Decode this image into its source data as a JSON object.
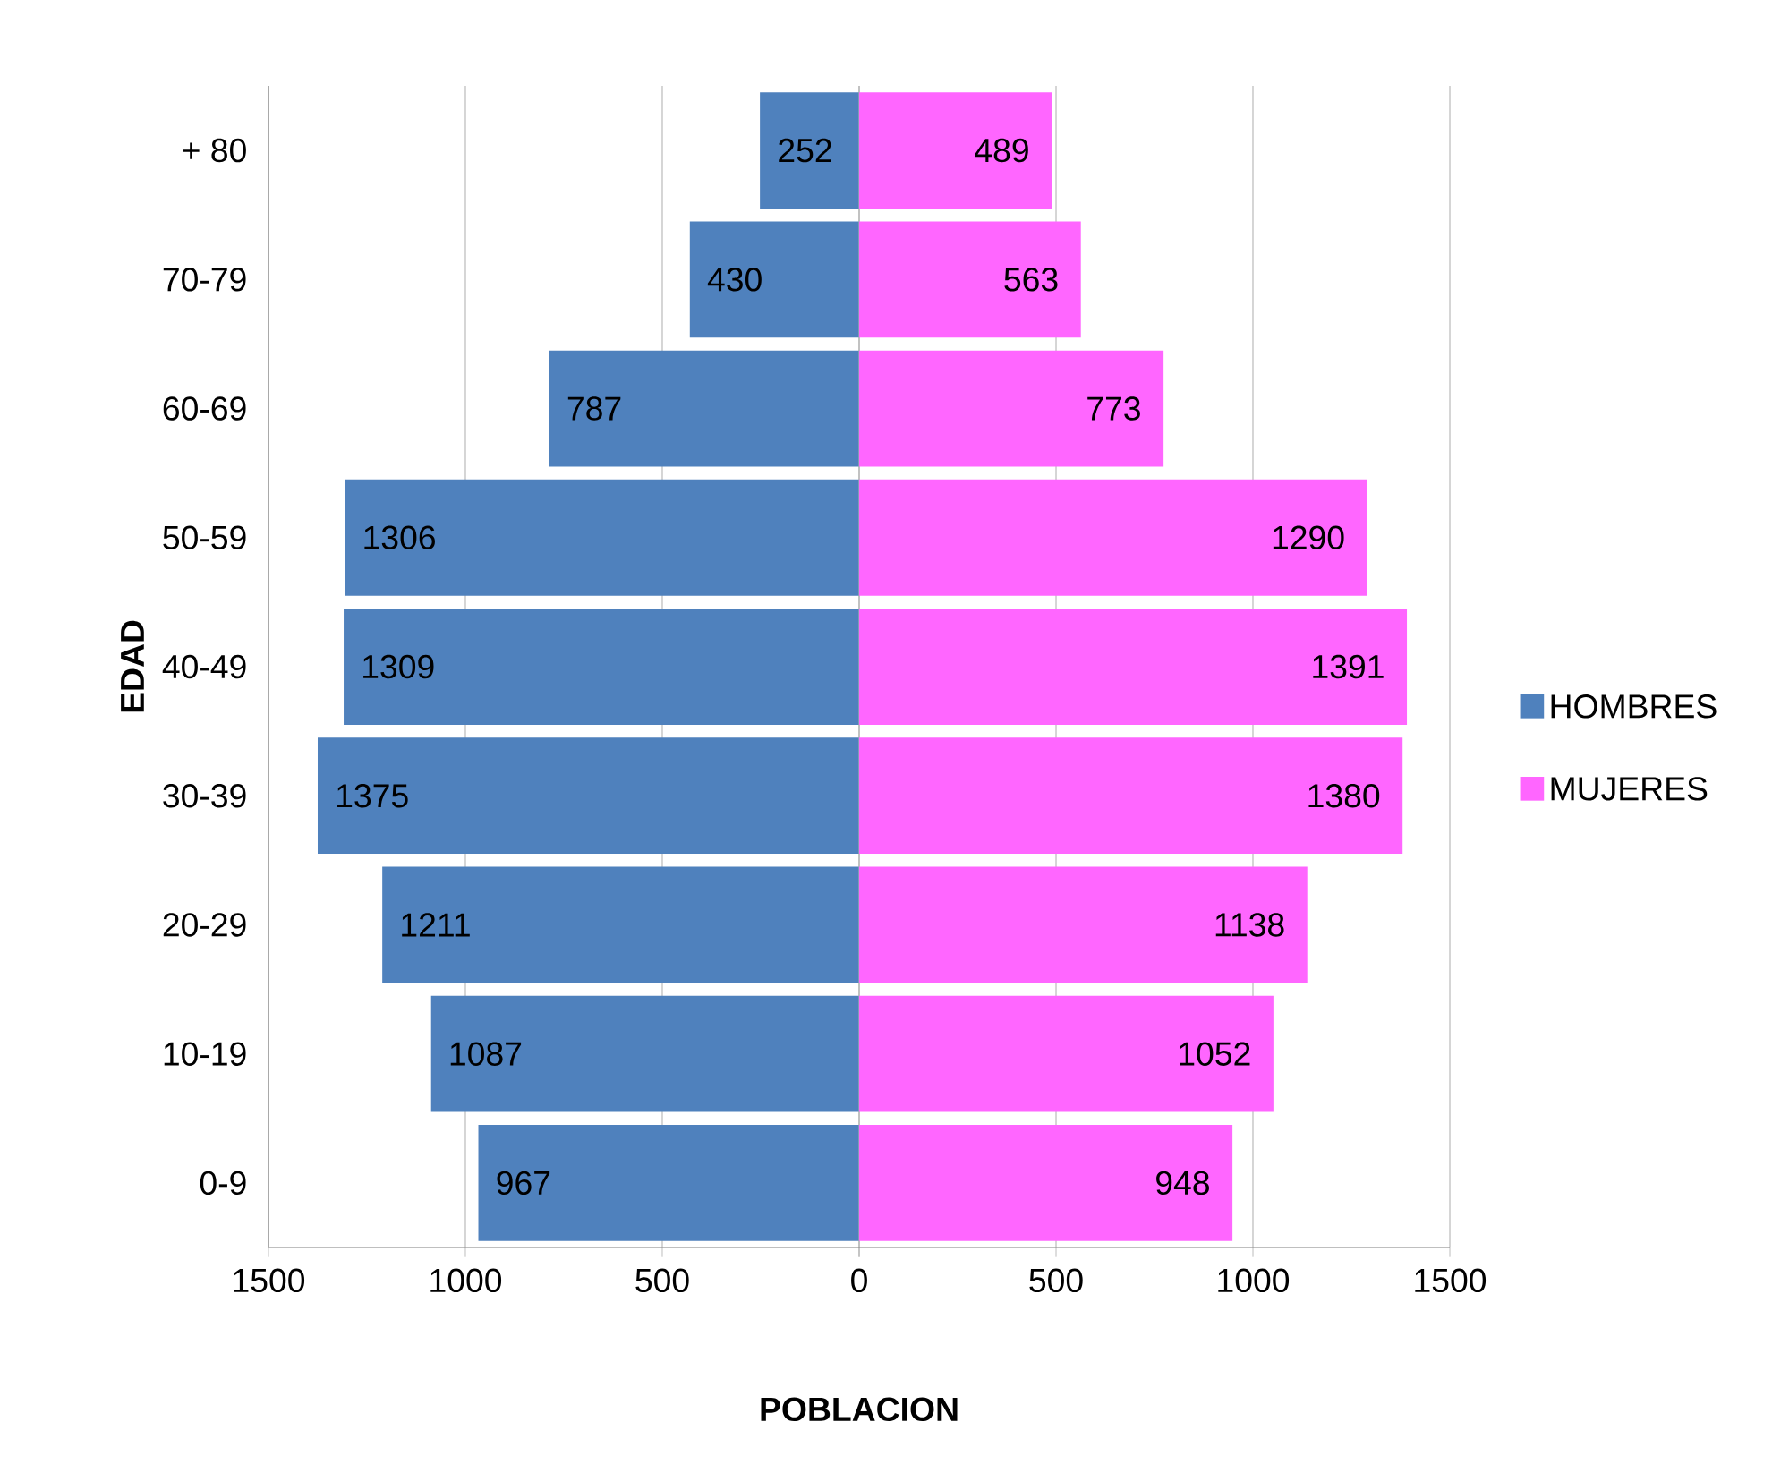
{
  "chart_data": [
    {
      "type": "bar",
      "orientation": "horizontal",
      "ylabel": "EDAD",
      "xlabel": "POBLACION",
      "categories": [
        "+  80",
        "70-79",
        "60-69",
        "50-59",
        "40-49",
        "30-39",
        "20-29",
        "10-19",
        "0-9"
      ],
      "series": [
        {
          "name": "HOMBRES",
          "color": "#4f81bd",
          "values": [
            252,
            430,
            787,
            1306,
            1309,
            1375,
            1211,
            1087,
            967
          ],
          "value_labels": [
            "252",
            "430",
            "787",
            "1306",
            "1309",
            "1375",
            "1211",
            "1087",
            "967"
          ]
        }
      ],
      "xlim": [
        1500,
        0
      ],
      "xticks": [
        1500,
        1000,
        500,
        0
      ],
      "grid": "x",
      "legend": "right"
    },
    {
      "type": "bar",
      "orientation": "horizontal",
      "categories": [
        null,
        null,
        null,
        null,
        null,
        null,
        null,
        null,
        null
      ],
      "series": [
        {
          "name": "MUJERES",
          "color": "#ff66ff",
          "values": [
            489,
            563,
            773,
            1290,
            1391,
            1380,
            1138,
            1052,
            948
          ],
          "value_labels": [
            "489",
            "563",
            "773",
            "1290",
            "1391",
            "1380",
            "1138",
            "1052",
            "948"
          ]
        }
      ],
      "xlim": [
        0,
        1500
      ],
      "xticks": [
        {
          "value": 0,
          "label": null
        },
        500,
        1000,
        1500
      ],
      "grid": "x",
      "legend": "right",
      "tick_labels": "x"
    }
  ]
}
